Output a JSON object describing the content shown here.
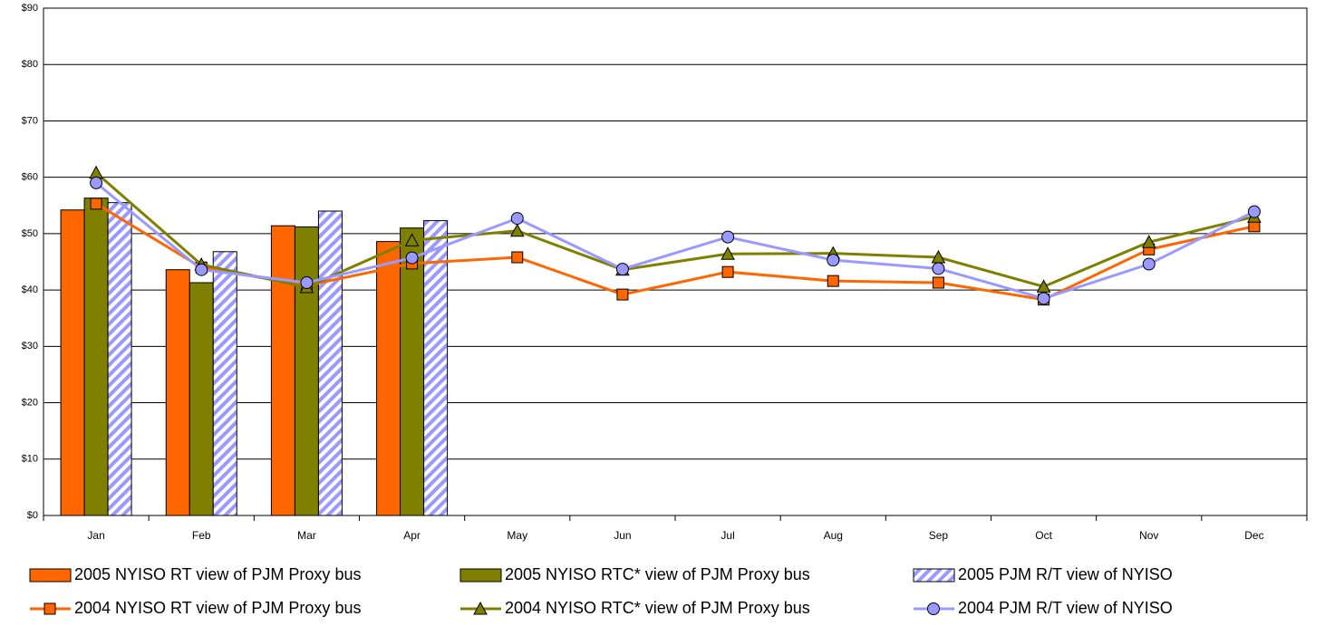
{
  "chart_data": {
    "type": "bar",
    "categories": [
      "Jan",
      "Feb",
      "Mar",
      "Apr",
      "May",
      "Jun",
      "Jul",
      "Aug",
      "Sep",
      "Oct",
      "Nov",
      "Dec"
    ],
    "series": [
      {
        "name": "2005 NYISO RT view of PJM Proxy bus",
        "type": "bar",
        "color": "#ff6600",
        "values": [
          54.2,
          43.6,
          51.4,
          48.6,
          null,
          null,
          null,
          null,
          null,
          null,
          null,
          null
        ]
      },
      {
        "name": "2005 NYISO RTC* view of PJM Proxy bus",
        "type": "bar",
        "color": "#808000",
        "values": [
          56.3,
          41.3,
          51.2,
          51.0,
          null,
          null,
          null,
          null,
          null,
          null,
          null,
          null
        ]
      },
      {
        "name": "2005 PJM R/T view of NYISO",
        "type": "bar",
        "color": "#9999ff",
        "pattern": "stripes",
        "values": [
          55.5,
          46.8,
          54.0,
          52.3,
          null,
          null,
          null,
          null,
          null,
          null,
          null,
          null
        ]
      },
      {
        "name": "2004 NYISO RT view of PJM Proxy bus",
        "type": "line",
        "color": "#ff6600",
        "marker": "square",
        "values": [
          55.3,
          44.0,
          40.8,
          44.7,
          45.8,
          39.2,
          43.2,
          41.6,
          41.3,
          38.3,
          47.2,
          51.3
        ]
      },
      {
        "name": "2004 NYISO RTC* view of PJM Proxy bus",
        "type": "line",
        "color": "#808000",
        "marker": "triangle",
        "values": [
          60.8,
          44.5,
          40.5,
          48.8,
          50.5,
          43.6,
          46.4,
          46.5,
          45.8,
          40.6,
          48.5,
          53.0
        ]
      },
      {
        "name": "2004 PJM R/T view of NYISO",
        "type": "line",
        "color": "#9999ff",
        "marker": "circle",
        "values": [
          59.0,
          43.6,
          41.3,
          45.7,
          52.7,
          43.7,
          49.4,
          45.3,
          43.8,
          38.5,
          44.6,
          53.9
        ]
      }
    ],
    "ylim": [
      0,
      90
    ],
    "yticks": [
      {
        "value": 0,
        "label": "$0"
      },
      {
        "value": 10,
        "label": "$10"
      },
      {
        "value": 20,
        "label": "$20"
      },
      {
        "value": 30,
        "label": "$30"
      },
      {
        "value": 40,
        "label": "$40"
      },
      {
        "value": 50,
        "label": "$50"
      },
      {
        "value": 60,
        "label": "$60"
      },
      {
        "value": 70,
        "label": "$70"
      },
      {
        "value": 80,
        "label": "$80"
      },
      {
        "value": 90,
        "label": "$90"
      }
    ],
    "grid": true,
    "legend": "bottom"
  }
}
